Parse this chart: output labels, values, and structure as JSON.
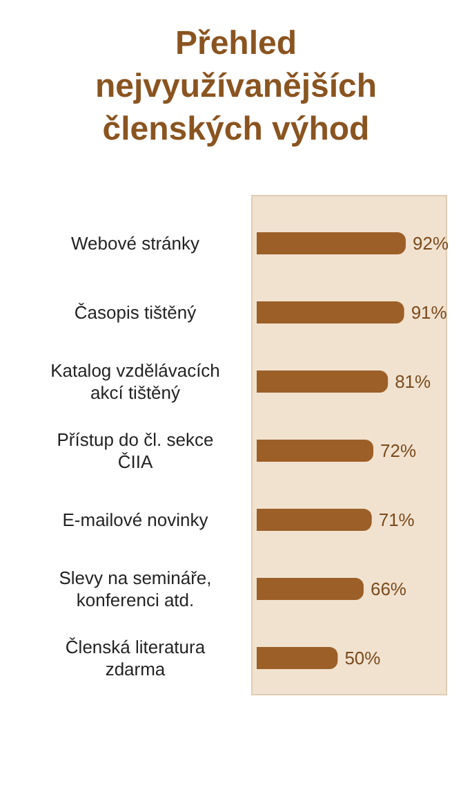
{
  "chart_data": {
    "type": "bar",
    "orientation": "horizontal",
    "title": "Přehled nejvyužívanějších členských výhod",
    "categories": [
      "Webové stránky",
      "Časopis tištěný",
      "Katalog vzdělávacích akcí tištěný",
      "Přístup do čl. sekce ČIIA",
      "E-mailové novinky",
      "Slevy na semináře, konferenci atd.",
      "Členská literatura zdarma"
    ],
    "values": [
      92,
      91,
      81,
      72,
      71,
      66,
      50
    ],
    "value_labels": [
      "92%",
      "91%",
      "81%",
      "72%",
      "71%",
      "66%",
      "50%"
    ],
    "color": "#9c5f28",
    "tick_labels": "y"
  }
}
